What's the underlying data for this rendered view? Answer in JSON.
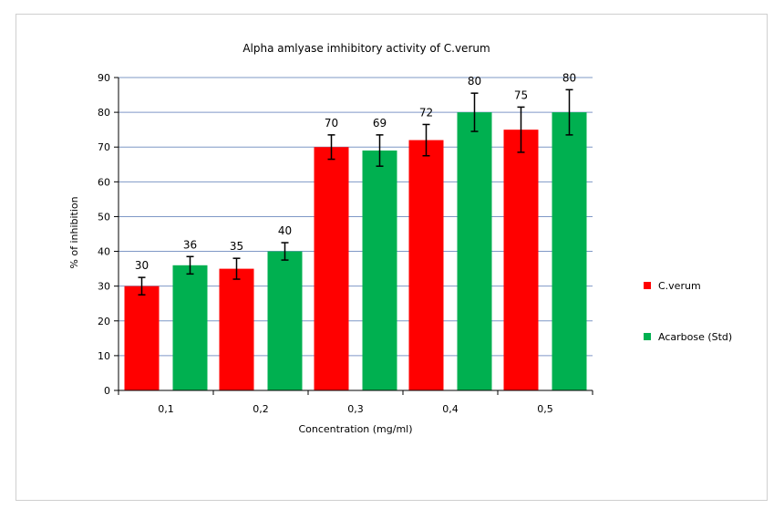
{
  "chart_data": {
    "type": "bar",
    "title": "Alpha amlyase imhibitory activity of  C.verum",
    "xlabel": "Concentration (mg/ml)",
    "ylabel": "% of inhibition",
    "categories": [
      "0,1",
      "0,2",
      "0,3",
      "0,4",
      "0,5"
    ],
    "ylim": [
      0,
      90
    ],
    "yticks": [
      0,
      10,
      20,
      30,
      40,
      50,
      60,
      70,
      80,
      90
    ],
    "grid": true,
    "legend_position": "right",
    "series": [
      {
        "name": "C.verum",
        "color": "#ff0000",
        "values": [
          30,
          35,
          70,
          72,
          75
        ],
        "errors": [
          2.5,
          3,
          3.5,
          4.5,
          6.5
        ],
        "labels": [
          "30",
          "35",
          "70",
          "72",
          "75"
        ]
      },
      {
        "name": "Acarbose (Std)",
        "color": "#00b050",
        "values": [
          36,
          40,
          69,
          80,
          80
        ],
        "errors": [
          2.5,
          2.5,
          4.5,
          5.5,
          6.5
        ],
        "labels": [
          "36",
          "40",
          "69",
          "80",
          "80"
        ]
      }
    ]
  }
}
